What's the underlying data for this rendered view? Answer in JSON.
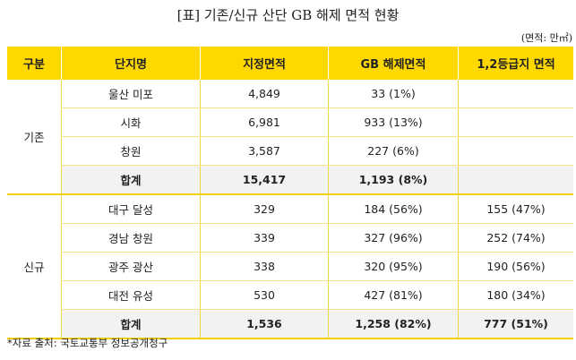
{
  "title": "[표] 기존/신규 산단 GB 해제 면적 현황",
  "unit": "(면적: 만㎡)",
  "headers": [
    "구분",
    "단지명",
    "지정면적",
    "GB 해제면적",
    "1,2등급지 면적"
  ],
  "groups": [
    {
      "label": "기존",
      "rows": [
        [
          "울산 미포",
          "4,849",
          "33 (1%)",
          ""
        ],
        [
          "시화",
          "6,981",
          "933 (13%)",
          ""
        ],
        [
          "창원",
          "3,587",
          "227 (6%)",
          ""
        ]
      ],
      "total": [
        "합계",
        "15,417",
        "1,193 (8%)",
        ""
      ]
    },
    {
      "label": "신규",
      "rows": [
        [
          "대구 달성",
          "329",
          "184 (56%)",
          "155 (47%)"
        ],
        [
          "경남 창원",
          "339",
          "327 (96%)",
          "252 (74%)"
        ],
        [
          "광주 광산",
          "338",
          "320 (95%)",
          "190 (56%)"
        ],
        [
          "대전 유성",
          "530",
          "427 (81%)",
          "180 (34%)"
        ]
      ],
      "total": [
        "합계",
        "1,536",
        "1,258 (82%)",
        "777 (51%)"
      ]
    }
  ],
  "footnote": "*자료 출처: 국토교통부 정보공개청구",
  "colors": {
    "header": "#FFD800",
    "total_row": "#F2F2F2"
  }
}
